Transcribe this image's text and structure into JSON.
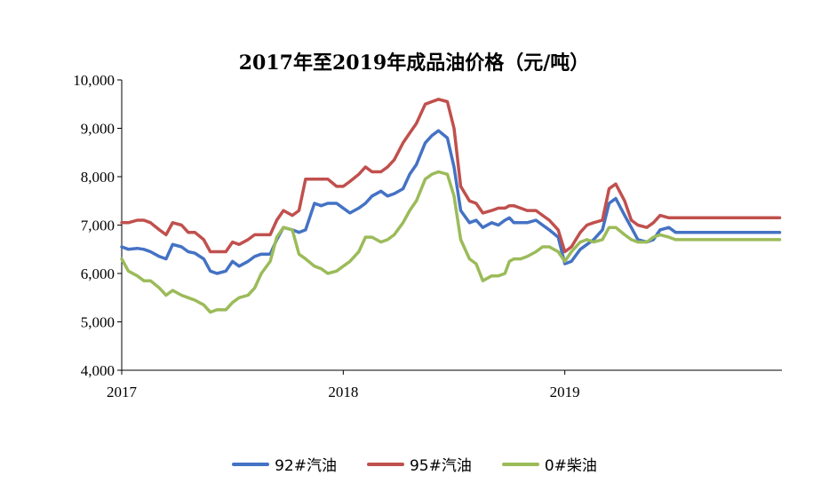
{
  "chart_data": {
    "type": "line",
    "title": "2017年至2019年成品油价格（元/吨）",
    "xlabel": "",
    "ylabel": "",
    "ylim": [
      4000,
      10000
    ],
    "yticks": [
      "4,000",
      "5,000",
      "6,000",
      "7,000",
      "8,000",
      "9,000",
      "10,000"
    ],
    "xticks": [
      {
        "label": "2017",
        "pos": 0
      },
      {
        "label": "2018",
        "pos": 1
      },
      {
        "label": "2019",
        "pos": 2
      }
    ],
    "xlim": [
      0,
      2.98
    ],
    "legend": "bottom",
    "grid": false,
    "series": [
      {
        "name": "92#汽油",
        "color": "#4472C4",
        "x": [
          0,
          0.03,
          0.07,
          0.1,
          0.13,
          0.17,
          0.2,
          0.23,
          0.27,
          0.3,
          0.33,
          0.37,
          0.4,
          0.43,
          0.47,
          0.5,
          0.53,
          0.57,
          0.6,
          0.63,
          0.67,
          0.7,
          0.73,
          0.77,
          0.8,
          0.83,
          0.87,
          0.9,
          0.93,
          0.97,
          1.0,
          1.03,
          1.07,
          1.1,
          1.13,
          1.17,
          1.2,
          1.23,
          1.27,
          1.3,
          1.33,
          1.37,
          1.4,
          1.43,
          1.47,
          1.5,
          1.53,
          1.57,
          1.6,
          1.63,
          1.67,
          1.7,
          1.73,
          1.75,
          1.77,
          1.8,
          1.83,
          1.87,
          1.9,
          1.93,
          1.97,
          2.0,
          2.03,
          2.07,
          2.1,
          2.13,
          2.17,
          2.2,
          2.23,
          2.27,
          2.3,
          2.33,
          2.37,
          2.4,
          2.43,
          2.47,
          2.5,
          2.53,
          2.57,
          2.6,
          2.63,
          2.67,
          2.7,
          2.73,
          2.77,
          2.8,
          2.83,
          2.87,
          2.9,
          2.93,
          2.97
        ],
        "y": [
          6550,
          6500,
          6520,
          6500,
          6450,
          6350,
          6300,
          6600,
          6550,
          6450,
          6420,
          6300,
          6050,
          6000,
          6050,
          6250,
          6150,
          6250,
          6350,
          6400,
          6400,
          6700,
          6950,
          6900,
          6850,
          6900,
          7450,
          7400,
          7450,
          7450,
          7350,
          7250,
          7350,
          7450,
          7600,
          7700,
          7600,
          7650,
          7750,
          8050,
          8250,
          8700,
          8850,
          8950,
          8800,
          8200,
          7300,
          7050,
          7100,
          6950,
          7050,
          7000,
          7100,
          7150,
          7050,
          7050,
          7050,
          7100,
          7000,
          6900,
          6750,
          6200,
          6250,
          6500,
          6600,
          6700,
          6900,
          7450,
          7550,
          7200,
          6950,
          6700,
          6650,
          6700,
          6900,
          6950,
          6850,
          6850,
          6850,
          6850,
          6850,
          6850,
          6850,
          6850,
          6850,
          6850,
          6850,
          6850,
          6850,
          6850,
          6850
        ]
      },
      {
        "name": "95#汽油",
        "color": "#C0504D",
        "x": [
          0,
          0.03,
          0.07,
          0.1,
          0.13,
          0.17,
          0.2,
          0.23,
          0.27,
          0.3,
          0.33,
          0.37,
          0.4,
          0.43,
          0.47,
          0.5,
          0.53,
          0.57,
          0.6,
          0.63,
          0.67,
          0.7,
          0.73,
          0.77,
          0.8,
          0.83,
          0.87,
          0.9,
          0.93,
          0.97,
          1.0,
          1.03,
          1.07,
          1.1,
          1.13,
          1.17,
          1.2,
          1.23,
          1.27,
          1.3,
          1.33,
          1.37,
          1.4,
          1.43,
          1.47,
          1.5,
          1.53,
          1.57,
          1.6,
          1.63,
          1.67,
          1.7,
          1.73,
          1.75,
          1.77,
          1.8,
          1.83,
          1.87,
          1.9,
          1.93,
          1.97,
          2.0,
          2.03,
          2.07,
          2.1,
          2.13,
          2.17,
          2.2,
          2.23,
          2.27,
          2.3,
          2.33,
          2.37,
          2.4,
          2.43,
          2.47,
          2.5,
          2.53,
          2.57,
          2.6,
          2.63,
          2.67,
          2.7,
          2.73,
          2.77,
          2.8,
          2.83,
          2.87,
          2.9,
          2.93,
          2.97
        ],
        "y": [
          7050,
          7050,
          7100,
          7100,
          7050,
          6900,
          6800,
          7050,
          7000,
          6850,
          6850,
          6700,
          6450,
          6450,
          6450,
          6650,
          6600,
          6700,
          6800,
          6800,
          6800,
          7100,
          7300,
          7200,
          7300,
          7950,
          7950,
          7950,
          7950,
          7800,
          7800,
          7900,
          8050,
          8200,
          8100,
          8100,
          8200,
          8350,
          8700,
          8900,
          9100,
          9500,
          9550,
          9600,
          9550,
          9000,
          7800,
          7500,
          7450,
          7250,
          7300,
          7350,
          7350,
          7400,
          7400,
          7350,
          7300,
          7300,
          7200,
          7100,
          6900,
          6450,
          6550,
          6850,
          7000,
          7050,
          7100,
          7750,
          7850,
          7500,
          7100,
          7000,
          6950,
          7050,
          7200,
          7150,
          7150,
          7150,
          7150,
          7150,
          7150,
          7150,
          7150,
          7150,
          7150,
          7150,
          7150,
          7150,
          7150,
          7150,
          7150
        ]
      },
      {
        "name": "0#柴油",
        "color": "#9BBB59",
        "x": [
          0,
          0.03,
          0.07,
          0.1,
          0.13,
          0.17,
          0.2,
          0.23,
          0.27,
          0.3,
          0.33,
          0.37,
          0.4,
          0.43,
          0.47,
          0.5,
          0.53,
          0.57,
          0.6,
          0.63,
          0.67,
          0.7,
          0.73,
          0.77,
          0.8,
          0.83,
          0.87,
          0.9,
          0.93,
          0.97,
          1.0,
          1.03,
          1.07,
          1.1,
          1.13,
          1.17,
          1.2,
          1.23,
          1.27,
          1.3,
          1.33,
          1.37,
          1.4,
          1.43,
          1.47,
          1.5,
          1.53,
          1.57,
          1.6,
          1.63,
          1.67,
          1.7,
          1.73,
          1.75,
          1.77,
          1.8,
          1.83,
          1.87,
          1.9,
          1.93,
          1.97,
          2.0,
          2.03,
          2.07,
          2.1,
          2.13,
          2.17,
          2.2,
          2.23,
          2.27,
          2.3,
          2.33,
          2.37,
          2.4,
          2.43,
          2.47,
          2.5,
          2.53,
          2.57,
          2.6,
          2.63,
          2.67,
          2.7,
          2.73,
          2.77,
          2.8,
          2.83,
          2.87,
          2.9,
          2.93,
          2.97
        ],
        "y": [
          6300,
          6050,
          5950,
          5850,
          5850,
          5700,
          5550,
          5650,
          5550,
          5500,
          5450,
          5350,
          5200,
          5250,
          5250,
          5400,
          5500,
          5550,
          5700,
          6000,
          6250,
          6750,
          6950,
          6900,
          6400,
          6300,
          6150,
          6100,
          6000,
          6050,
          6150,
          6250,
          6450,
          6750,
          6750,
          6650,
          6700,
          6800,
          7050,
          7300,
          7500,
          7950,
          8050,
          8100,
          8050,
          7600,
          6700,
          6300,
          6200,
          5850,
          5950,
          5950,
          6000,
          6250,
          6300,
          6300,
          6350,
          6450,
          6550,
          6550,
          6450,
          6250,
          6450,
          6650,
          6700,
          6650,
          6700,
          6950,
          6950,
          6800,
          6700,
          6650,
          6650,
          6750,
          6800,
          6750,
          6700,
          6700,
          6700,
          6700,
          6700,
          6700,
          6700,
          6700,
          6700,
          6700,
          6700,
          6700,
          6700,
          6700,
          6700
        ]
      }
    ]
  }
}
